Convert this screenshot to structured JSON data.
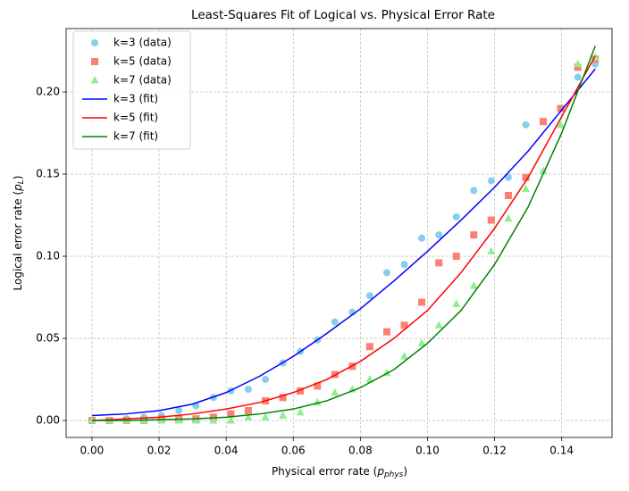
{
  "chart_data": {
    "type": "scatter",
    "title": "Least-Squares Fit of Logical vs. Physical Error Rate",
    "x_label": [
      "Physical error rate (",
      "p",
      "phys",
      ")"
    ],
    "y_label": [
      "Logical error rate (",
      "p",
      "L",
      ")"
    ],
    "xlim": [
      -0.0077,
      0.155
    ],
    "ylim": [
      -0.0103,
      0.2386
    ],
    "xticks": [
      {
        "value": 0,
        "label": "0.00"
      },
      {
        "value": 0.02,
        "label": "0.02"
      },
      {
        "value": 0.04,
        "label": "0.04"
      },
      {
        "value": 0.06,
        "label": "0.06"
      },
      {
        "value": 0.08,
        "label": "0.08"
      },
      {
        "value": 0.1,
        "label": "0.10"
      },
      {
        "value": 0.12,
        "label": "0.12"
      },
      {
        "value": 0.14,
        "label": "0.14"
      }
    ],
    "yticks": [
      {
        "value": 0,
        "label": "0.00"
      },
      {
        "value": 0.05,
        "label": "0.05"
      },
      {
        "value": 0.1,
        "label": "0.10"
      },
      {
        "value": 0.15,
        "label": "0.15"
      },
      {
        "value": 0.2,
        "label": "0.20"
      }
    ],
    "grid": true,
    "legend": "upper left",
    "series": [
      {
        "name": "k=3 (data)",
        "color": "#87ceeb",
        "style": "circle",
        "x": [
          0,
          0.0052,
          0.0103,
          0.0155,
          0.0207,
          0.0259,
          0.031,
          0.0362,
          0.0414,
          0.0466,
          0.0517,
          0.0569,
          0.0621,
          0.0672,
          0.0724,
          0.0776,
          0.0828,
          0.0879,
          0.0931,
          0.0983,
          0.1034,
          0.1086,
          0.1138,
          0.119,
          0.1241,
          0.1293,
          0.1345,
          0.1397,
          0.1448,
          0.15
        ],
        "values": [
          0,
          0,
          0.001,
          0.002,
          0.003,
          0.006,
          0.009,
          0.014,
          0.018,
          0.019,
          0.025,
          0.035,
          0.042,
          0.049,
          0.06,
          0.066,
          0.076,
          0.09,
          0.095,
          0.111,
          0.113,
          0.124,
          0.14,
          0.146,
          0.148,
          0.18,
          0.182,
          0.19,
          0.209,
          0.217
        ]
      },
      {
        "name": "k=5 (data)",
        "color": "#fa8072",
        "style": "square",
        "x": [
          0,
          0.0052,
          0.0103,
          0.0155,
          0.0207,
          0.0259,
          0.031,
          0.0362,
          0.0414,
          0.0466,
          0.0517,
          0.0569,
          0.0621,
          0.0672,
          0.0724,
          0.0776,
          0.0828,
          0.0879,
          0.0931,
          0.0983,
          0.1034,
          0.1086,
          0.1138,
          0.119,
          0.1241,
          0.1293,
          0.1345,
          0.1397,
          0.1448,
          0.15
        ],
        "values": [
          0,
          0,
          0,
          0,
          0.001,
          0.001,
          0.001,
          0.002,
          0.004,
          0.006,
          0.012,
          0.014,
          0.018,
          0.021,
          0.028,
          0.033,
          0.045,
          0.054,
          0.058,
          0.072,
          0.096,
          0.1,
          0.113,
          0.122,
          0.137,
          0.148,
          0.182,
          0.19,
          0.215,
          0.22
        ]
      },
      {
        "name": "k=7 (data)",
        "color": "#90ee90",
        "style": "triangle",
        "x": [
          0,
          0.0052,
          0.0103,
          0.0155,
          0.0207,
          0.0259,
          0.031,
          0.0362,
          0.0414,
          0.0466,
          0.0517,
          0.0569,
          0.0621,
          0.0672,
          0.0724,
          0.0776,
          0.0828,
          0.0879,
          0.0931,
          0.0983,
          0.1034,
          0.1086,
          0.1138,
          0.119,
          0.1241,
          0.1293,
          0.1345,
          0.1397,
          0.1448,
          0.15
        ],
        "values": [
          0,
          0,
          0,
          0,
          0,
          0,
          0,
          0,
          0,
          0.002,
          0.002,
          0.003,
          0.005,
          0.011,
          0.017,
          0.019,
          0.025,
          0.029,
          0.039,
          0.047,
          0.058,
          0.071,
          0.082,
          0.103,
          0.123,
          0.141,
          0.152,
          0.18,
          0.217,
          0.221
        ]
      },
      {
        "name": "k=3 (fit)",
        "color": "#0000ff",
        "style": "line",
        "x": [
          0,
          0.01,
          0.02,
          0.03,
          0.04,
          0.05,
          0.06,
          0.07,
          0.08,
          0.09,
          0.1,
          0.11,
          0.12,
          0.13,
          0.14,
          0.15
        ],
        "values": [
          0.003,
          0.004,
          0.006,
          0.01,
          0.017,
          0.027,
          0.039,
          0.053,
          0.068,
          0.085,
          0.103,
          0.122,
          0.142,
          0.164,
          0.189,
          0.214
        ]
      },
      {
        "name": "k=5 (fit)",
        "color": "#ff0000",
        "style": "line",
        "x": [
          0,
          0.01,
          0.02,
          0.03,
          0.04,
          0.05,
          0.06,
          0.07,
          0.08,
          0.09,
          0.1,
          0.11,
          0.12,
          0.13,
          0.14,
          0.15
        ],
        "values": [
          0,
          0.001,
          0.002,
          0.004,
          0.007,
          0.011,
          0.017,
          0.025,
          0.036,
          0.05,
          0.067,
          0.09,
          0.117,
          0.148,
          0.185,
          0.222
        ]
      },
      {
        "name": "k=7 (fit)",
        "color": "#008000",
        "style": "line",
        "x": [
          0,
          0.01,
          0.02,
          0.03,
          0.04,
          0.05,
          0.06,
          0.07,
          0.08,
          0.09,
          0.1,
          0.11,
          0.12,
          0.13,
          0.14,
          0.15
        ],
        "values": [
          0,
          0,
          0.0005,
          0.001,
          0.002,
          0.004,
          0.007,
          0.012,
          0.02,
          0.031,
          0.047,
          0.067,
          0.095,
          0.13,
          0.175,
          0.228
        ]
      }
    ]
  }
}
